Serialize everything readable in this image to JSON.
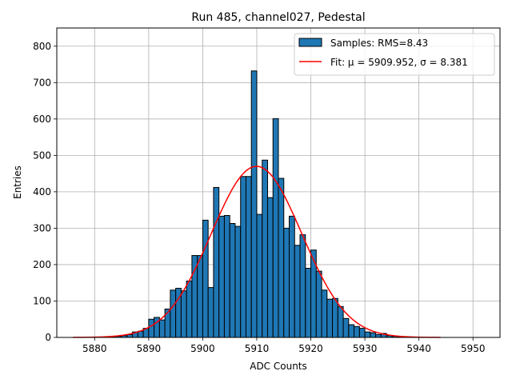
{
  "chart_data": {
    "type": "bar",
    "title": "Run 485, channel027, Pedestal",
    "xlabel": "ADC Counts",
    "ylabel": "Entries",
    "xlim": [
      5873,
      5955
    ],
    "ylim": [
      0,
      850
    ],
    "xticks": [
      5880,
      5890,
      5900,
      5910,
      5920,
      5930,
      5940,
      5950
    ],
    "yticks": [
      0,
      100,
      200,
      300,
      400,
      500,
      600,
      700,
      800
    ],
    "grid": true,
    "legend_position": "top-right",
    "bin_width": 1,
    "series": [
      {
        "name": "Samples: RMS=8.43",
        "kind": "histogram",
        "color": "#1f77b4",
        "edgecolor": "#000000",
        "bin_starts": [
          5883,
          5884,
          5885,
          5886,
          5887,
          5888,
          5889,
          5890,
          5891,
          5892,
          5893,
          5894,
          5895,
          5896,
          5897,
          5898,
          5899,
          5900,
          5901,
          5902,
          5903,
          5904,
          5905,
          5906,
          5907,
          5908,
          5909,
          5910,
          5911,
          5912,
          5913,
          5914,
          5915,
          5916,
          5917,
          5918,
          5919,
          5920,
          5921,
          5922,
          5923,
          5924,
          5925,
          5926,
          5927,
          5928,
          5929,
          5930,
          5931,
          5932,
          5933,
          5934,
          5935,
          5936
        ],
        "values": [
          2,
          3,
          5,
          8,
          15,
          17,
          25,
          50,
          55,
          48,
          78,
          130,
          135,
          128,
          155,
          225,
          225,
          322,
          137,
          412,
          333,
          335,
          313,
          305,
          442,
          442,
          732,
          338,
          487,
          384,
          601,
          437,
          300,
          333,
          253,
          282,
          190,
          240,
          182,
          130,
          105,
          107,
          85,
          52,
          35,
          30,
          25,
          15,
          13,
          8,
          11,
          5,
          3,
          2
        ]
      },
      {
        "name": "Fit: μ = 5909.952, σ = 8.381",
        "kind": "gaussian",
        "color": "#ff0000",
        "mu": 5909.952,
        "sigma": 8.381,
        "amplitude": 470,
        "x_range": [
          5876,
          5944
        ]
      }
    ]
  }
}
